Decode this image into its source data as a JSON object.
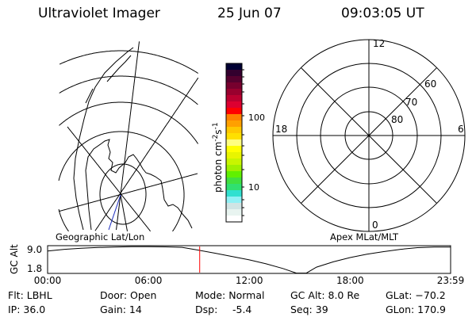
{
  "header": {
    "instrument": "Ultraviolet Imager",
    "date": "25 Jun 07",
    "time": "09:03:05 UT"
  },
  "colorbar": {
    "label": "photon cm",
    "label_exp1": "-2",
    "label_mid": "s",
    "label_exp2": "-1",
    "ticks": [
      "100",
      "10"
    ],
    "colors": [
      "#000033",
      "#33002e",
      "#55002e",
      "#77002e",
      "#99002e",
      "#bb0030",
      "#dd0030",
      "#ff0000",
      "#ff8000",
      "#ffa000",
      "#ffc800",
      "#ffe000",
      "#ffff80",
      "#ffff00",
      "#e8f500",
      "#c8f500",
      "#a0f000",
      "#60f000",
      "#40e040",
      "#30e070",
      "#30e0d0",
      "#90f0f5",
      "#d0e4e4",
      "#e8f4f0",
      "#ffffff"
    ]
  },
  "left_map": {
    "label": "Geographic Lat/Lon"
  },
  "right_map": {
    "label": "Apex MLat/MLT",
    "mlt_labels": [
      "12",
      "6",
      "0",
      "18"
    ],
    "lat_labels": [
      "60",
      "70",
      "80"
    ]
  },
  "chart_data": {
    "type": "line",
    "ylabel": "GC Alt",
    "yticks": [
      "9.0",
      "1.8"
    ],
    "xticks": [
      "00:00",
      "06:00",
      "12:00",
      "18:00",
      "23:59"
    ],
    "xlim": [
      0,
      23.98
    ],
    "ylim": [
      1.0,
      9.4
    ],
    "current_time_hours": 9.05,
    "marker_color": "#ff0000",
    "x": [
      0,
      1,
      2,
      3,
      4,
      5,
      6,
      7,
      8,
      9,
      10,
      11,
      12,
      13,
      14,
      14.8,
      15.4,
      16,
      17,
      18,
      19,
      20,
      21,
      22,
      23,
      23.98
    ],
    "y": [
      7.8,
      8.3,
      8.6,
      8.85,
      9.0,
      9.1,
      9.1,
      9.05,
      8.9,
      8.0,
      7.1,
      6.1,
      5.1,
      3.9,
      2.5,
      1.1,
      1.1,
      2.9,
      4.5,
      5.8,
      6.8,
      7.6,
      8.3,
      8.8,
      9.0,
      9.0
    ]
  },
  "status": {
    "flt": "Flt: LBHL",
    "ip": "IP: 36.0",
    "door": "Door: Open",
    "gain": "Gain: 14",
    "mode": "Mode: Normal",
    "dsp_label": "Dsp:",
    "dsp_value": "-5.4",
    "gc_alt": "GC Alt: 8.0 Re",
    "seq": "Seq: 39",
    "glat": "GLat: −70.2",
    "glon": "GLon: 170.9"
  }
}
